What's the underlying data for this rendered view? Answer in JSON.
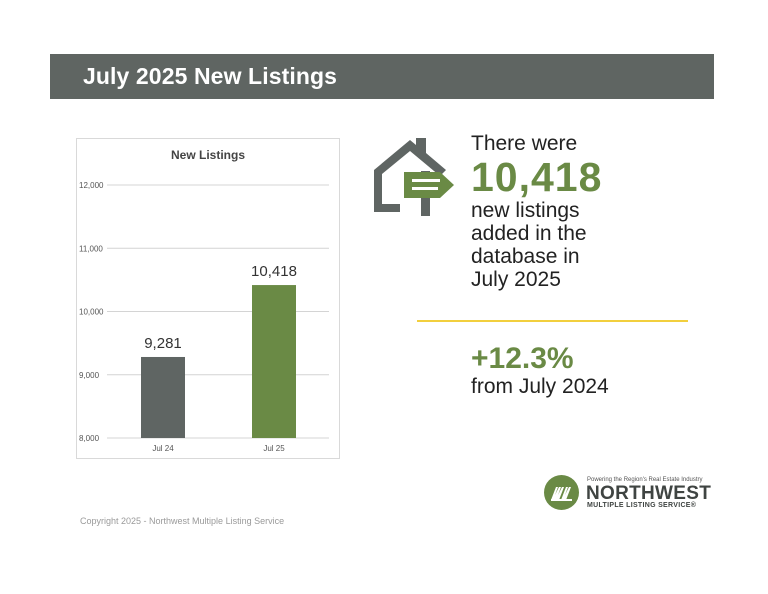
{
  "header": {
    "title": "July 2025 New Listings"
  },
  "chart_data": {
    "type": "bar",
    "title": "New Listings",
    "categories": [
      "Jul 24",
      "Jul 25"
    ],
    "values": [
      9281,
      10418
    ],
    "value_labels": [
      "9,281",
      "10,418"
    ],
    "ylim": [
      8000,
      12000
    ],
    "yticks": [
      8000,
      9000,
      10000,
      11000,
      12000
    ],
    "ytick_labels": [
      "8,000",
      "9,000",
      "10,000",
      "11,000",
      "12,000"
    ],
    "xlabel": "",
    "ylabel": "",
    "colors": [
      "#5f6563",
      "#6a8a45"
    ],
    "grid": true
  },
  "stat": {
    "intro": "There were",
    "number": "10,418",
    "lines": [
      "new listings",
      "added in the",
      "database in",
      "July 2025"
    ]
  },
  "change": {
    "percent": "+12.3%",
    "from": "from July 2024"
  },
  "logo": {
    "tagline": "Powering the Region's Real Estate Industry",
    "name": "NORTHWEST",
    "subtitle": "MULTIPLE LISTING SERVICE®"
  },
  "footer": {
    "copyright": "Copyright 2025 - Northwest Multiple Listing Service"
  },
  "colors": {
    "accent": "#6a8a45",
    "banner": "#5f6562",
    "divider": "#f2cf3e"
  },
  "icons": {
    "house": "house-signpost-icon",
    "logo": "nwmls-logo-icon"
  }
}
